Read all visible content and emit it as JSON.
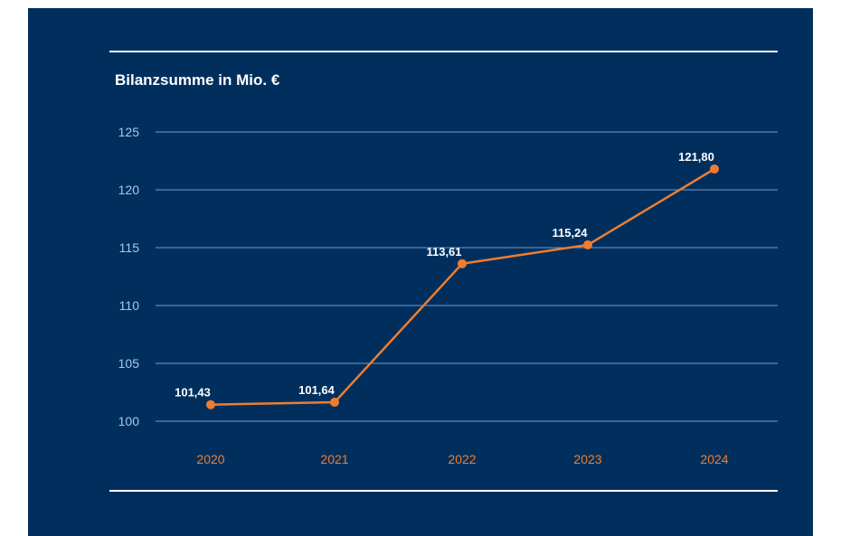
{
  "chart_data": {
    "type": "line",
    "title": "Bilanzsumme in Mio. €",
    "categories": [
      "2020",
      "2021",
      "2022",
      "2023",
      "2024"
    ],
    "series": [
      {
        "values": [
          101.43,
          101.64,
          113.61,
          115.24,
          121.8
        ]
      }
    ],
    "data_labels": [
      "101,43",
      "101,64",
      "113,61",
      "115,24",
      "121,80"
    ],
    "y_ticks": [
      "100",
      "105",
      "110",
      "115",
      "120",
      "125"
    ],
    "ylim": [
      100,
      125
    ],
    "grid": true,
    "colors": {
      "background": "#002f5e",
      "line": "#f07d2e",
      "grid": "#6f9bd0",
      "y_tick_text": "#a9c7ea",
      "x_tick_text": "#f07d2e",
      "label_text": "#ffffff"
    }
  }
}
